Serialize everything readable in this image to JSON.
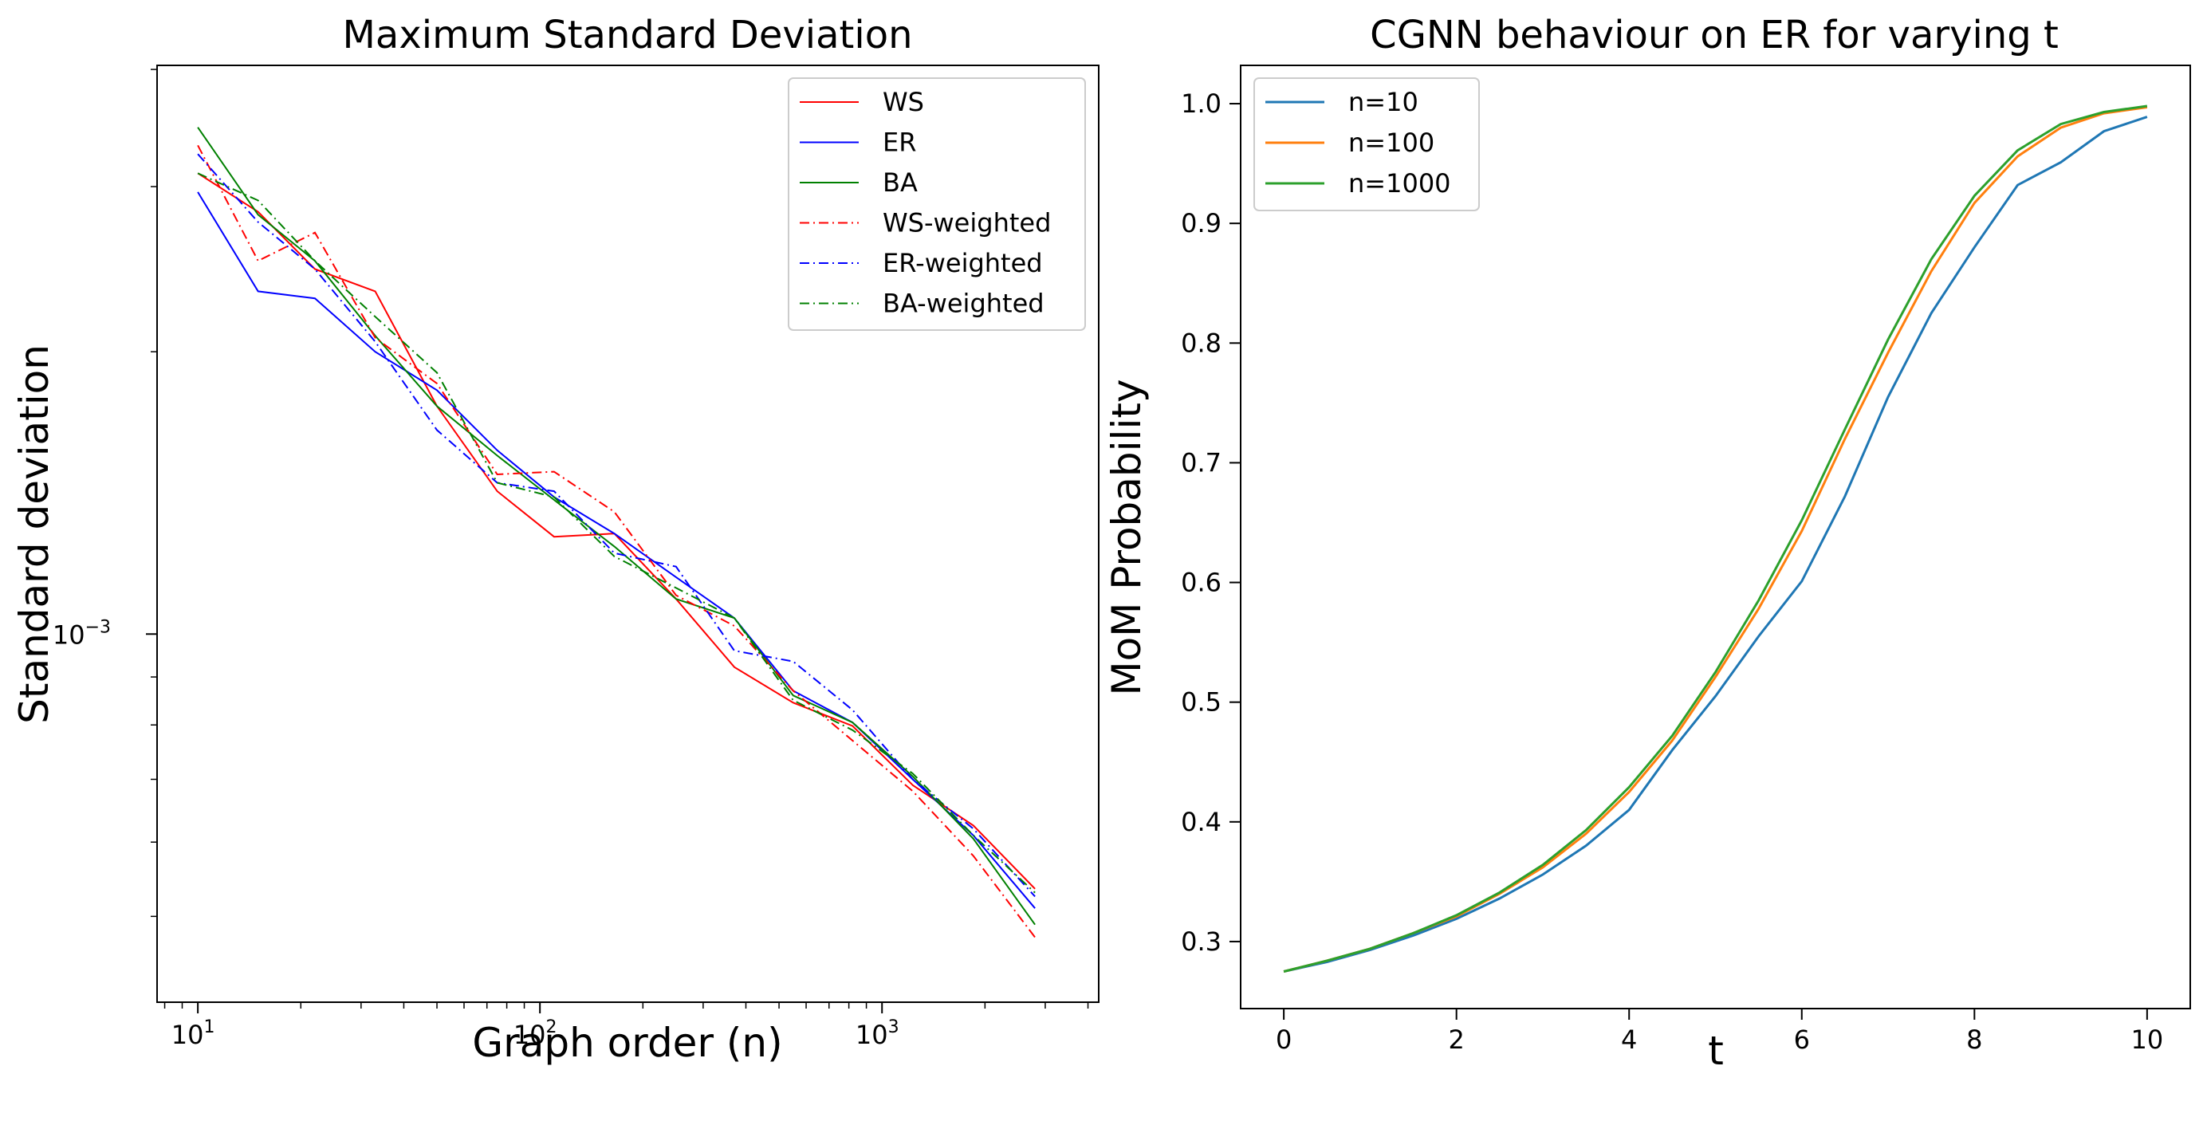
{
  "chart_data": [
    {
      "type": "line",
      "title": "Maximum Standard Deviation",
      "xlabel": "Graph order (n)",
      "ylabel": "Standard deviation",
      "xscale": "log",
      "yscale": "log",
      "xlim": [
        7.6,
        4300
      ],
      "ylim": [
        0.000405,
        0.00404
      ],
      "xticks": [
        {
          "value": 10,
          "base": "10",
          "exp": "1"
        },
        {
          "value": 100,
          "base": "10",
          "exp": "2"
        },
        {
          "value": 1000,
          "base": "10",
          "exp": "3"
        }
      ],
      "yticks": [
        {
          "value": 0.001,
          "base": "10",
          "exp": "−3"
        }
      ],
      "legend_position": "top-right",
      "x": [
        10,
        15,
        22,
        33,
        50,
        75,
        110,
        165,
        250,
        370,
        550,
        820,
        1230,
        1850,
        2800
      ],
      "series": [
        {
          "name": "WS",
          "color": "#ff0000",
          "style": "solid",
          "values": [
            0.0031,
            0.00282,
            0.00245,
            0.00232,
            0.00175,
            0.00142,
            0.00127,
            0.00128,
            0.00109,
            0.000922,
            0.000845,
            0.000798,
            0.00069,
            0.000625,
            0.000535
          ]
        },
        {
          "name": "ER",
          "color": "#0000ff",
          "style": "solid",
          "values": [
            0.00296,
            0.00232,
            0.00228,
            0.002,
            0.00182,
            0.00157,
            0.0014,
            0.00128,
            0.00115,
            0.00104,
            0.00087,
            0.000805,
            0.0007,
            0.00061,
            0.00051
          ]
        },
        {
          "name": "BA",
          "color": "#008000",
          "style": "solid",
          "values": [
            0.00347,
            0.0028,
            0.0025,
            0.00208,
            0.00175,
            0.00155,
            0.00139,
            0.00124,
            0.00109,
            0.00104,
            0.00086,
            0.000805,
            0.000705,
            0.000605,
            0.00049
          ]
        },
        {
          "name": "WS-weighted",
          "color": "#ff0000",
          "style": "dashdot",
          "values": [
            0.00332,
            0.0025,
            0.00268,
            0.00207,
            0.00185,
            0.00148,
            0.00149,
            0.00135,
            0.0011,
            0.00102,
            0.00087,
            0.00077,
            0.00068,
            0.00058,
            0.000475
          ]
        },
        {
          "name": "ER-weighted",
          "color": "#0000ff",
          "style": "dashdot",
          "values": [
            0.00325,
            0.00275,
            0.00245,
            0.00205,
            0.00165,
            0.00145,
            0.00142,
            0.00122,
            0.00118,
            0.00096,
            0.000935,
            0.00083,
            0.0007,
            0.00062,
            0.000525
          ]
        },
        {
          "name": "BA-weighted",
          "color": "#008000",
          "style": "dashdot",
          "values": [
            0.0031,
            0.0029,
            0.0025,
            0.00218,
            0.0019,
            0.00145,
            0.0014,
            0.00121,
            0.00112,
            0.00104,
            0.00085,
            0.00079,
            0.00071,
            0.00061,
            0.00053
          ]
        }
      ]
    },
    {
      "type": "line",
      "title": "CGNN behaviour on ER for varying t",
      "xlabel": "t",
      "ylabel": "MoM Probability",
      "xlim": [
        -0.5,
        10.5
      ],
      "ylim": [
        0.244,
        1.032
      ],
      "xticks": [
        0,
        2,
        4,
        6,
        8,
        10
      ],
      "yticks": [
        "0.3",
        "0.4",
        "0.5",
        "0.6",
        "0.7",
        "0.8",
        "0.9",
        "1.0"
      ],
      "legend_position": "top-left",
      "x": [
        0,
        0.5,
        1,
        1.5,
        2,
        2.5,
        3,
        3.5,
        4,
        4.5,
        5,
        5.5,
        6,
        6.5,
        7,
        7.5,
        8,
        8.5,
        9,
        9.5,
        10
      ],
      "series": [
        {
          "name": "n=10",
          "color": "#1f77b4",
          "values": [
            0.275,
            0.283,
            0.293,
            0.305,
            0.319,
            0.336,
            0.356,
            0.38,
            0.41,
            0.46,
            0.505,
            0.555,
            0.601,
            0.672,
            0.755,
            0.825,
            0.88,
            0.932,
            0.951,
            0.977,
            0.989
          ]
        },
        {
          "name": "n=100",
          "color": "#ff7f0e",
          "values": [
            0.275,
            0.284,
            0.294,
            0.307,
            0.321,
            0.34,
            0.362,
            0.39,
            0.425,
            0.468,
            0.521,
            0.578,
            0.643,
            0.72,
            0.792,
            0.86,
            0.917,
            0.956,
            0.98,
            0.992,
            0.997
          ]
        },
        {
          "name": "n=1000",
          "color": "#2ca02c",
          "values": [
            0.275,
            0.284,
            0.294,
            0.307,
            0.322,
            0.341,
            0.364,
            0.393,
            0.429,
            0.472,
            0.525,
            0.585,
            0.652,
            0.728,
            0.803,
            0.87,
            0.923,
            0.961,
            0.983,
            0.993,
            0.998
          ]
        }
      ]
    }
  ]
}
